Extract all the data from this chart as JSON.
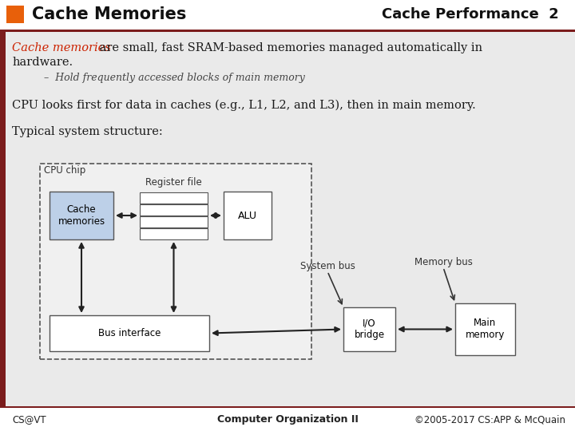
{
  "title_left": "Cache Memories",
  "title_right": "Cache Performance  2",
  "orange_rect_color": "#E8600A",
  "dark_red_line_color": "#7B1C1C",
  "text_color": "#1a1a1a",
  "red_text_color": "#CC2200",
  "footer_left": "CS@VT",
  "footer_center": "Computer Organization II",
  "footer_right": "©2005-2017 CS:APP & McQuain",
  "bullet_text": "Hold frequently accessed blocks of main memory",
  "cache_label": "Cache\nmemories",
  "register_label": "Register file",
  "alu_label": "ALU",
  "sysbus_label": "System bus",
  "membus_label": "Memory bus",
  "busif_label": "Bus interface",
  "io_label": "I/O\nbridge",
  "mainmem_label": "Main\nmemory",
  "cpu_chip_label": "CPU chip",
  "cache_fill": "#BDD0E8",
  "body_bg": "#EAEAEA",
  "header_bg": "#FFFFFF",
  "footer_bg": "#FFFFFF"
}
